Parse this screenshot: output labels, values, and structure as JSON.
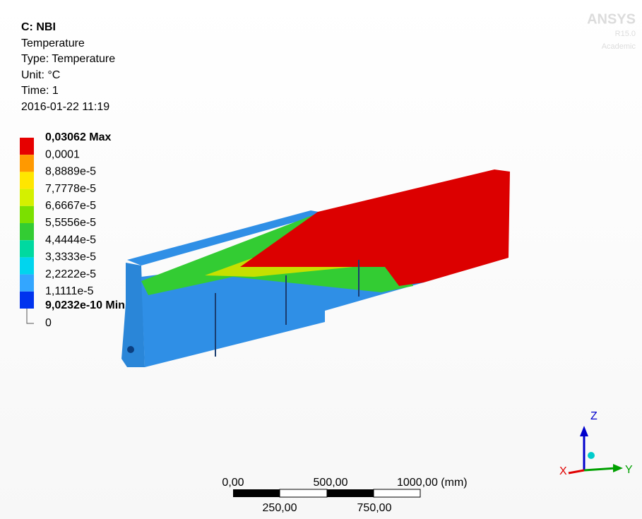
{
  "header": {
    "lines": [
      "C: NBI",
      "Temperature",
      "Type: Temperature",
      "Unit: °C",
      "Time: 1",
      "2016-01-22 11:19"
    ]
  },
  "legend": {
    "max_label": "0,03062 Max",
    "labels": [
      "0,0001",
      "8,8889e-5",
      "7,7778e-5",
      "6,6667e-5",
      "5,5556e-5",
      "4,4444e-5",
      "3,3333e-5",
      "2,2222e-5",
      "1,1111e-5"
    ],
    "min_label": "9,0232e-10 Min",
    "zero_label": "0",
    "colors": [
      "#e60000",
      "#ff9900",
      "#ffe600",
      "#d4f000",
      "#7be000",
      "#33cc33",
      "#00d9a0",
      "#00d5ee",
      "#33a6ff",
      "#0033ee"
    ]
  },
  "logo": {
    "name": "ANSYS",
    "release": "R15.0",
    "edition": "Academic"
  },
  "scale_bar": {
    "top_labels": [
      "0,00",
      "500,00",
      "1000,00 (mm)"
    ],
    "bottom_labels": [
      "250,00",
      "750,00"
    ]
  },
  "triad": {
    "x": "X",
    "y": "Y",
    "z": "Z"
  }
}
